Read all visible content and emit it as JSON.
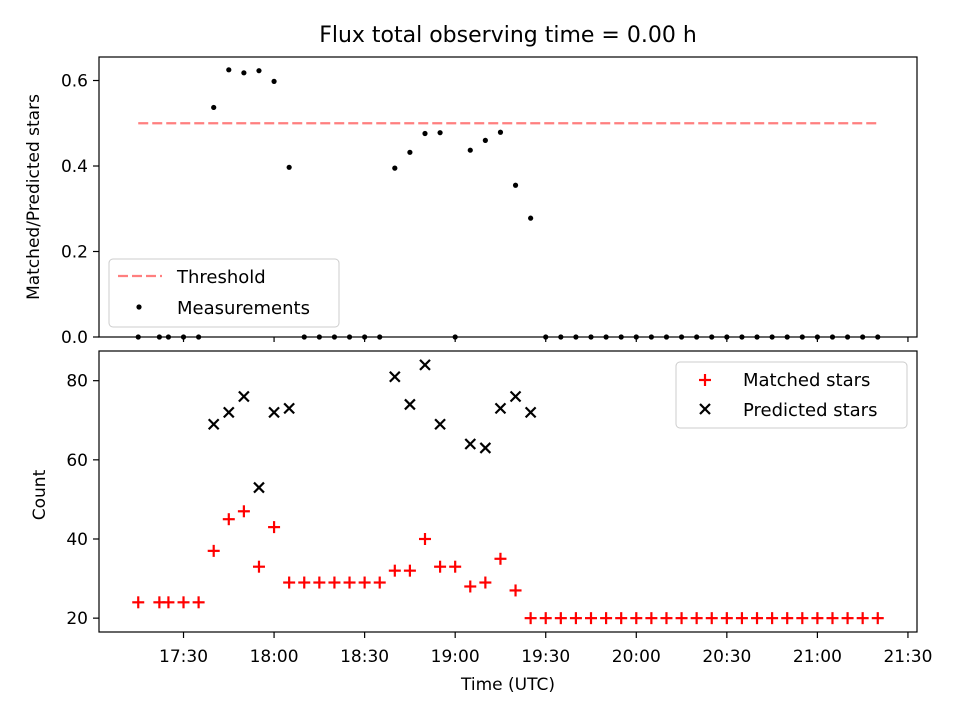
{
  "chart_data": [
    {
      "type": "scatter",
      "title": "Flux total observing time = 0.00 h",
      "xlabel": "",
      "ylabel": "Matched/Predicted stars",
      "ylim": [
        0,
        0.655
      ],
      "yticks": [
        "0.0",
        "0.2",
        "0.4",
        "0.6"
      ],
      "grid": false,
      "legend_position": "lower-left",
      "threshold": {
        "name": "Threshold",
        "value": 0.5,
        "x_start": "17:15",
        "x_end": "21:20",
        "color": "#ff7f7f",
        "style": "dashed"
      },
      "series": [
        {
          "name": "Measurements",
          "color": "#000000",
          "points": [
            [
              "17:15",
              0.0
            ],
            [
              "17:22",
              0.0
            ],
            [
              "17:25",
              0.0
            ],
            [
              "17:30",
              0.0
            ],
            [
              "17:35",
              0.0
            ],
            [
              "17:40",
              0.537
            ],
            [
              "17:45",
              0.625
            ],
            [
              "17:50",
              0.618
            ],
            [
              "17:55",
              0.623
            ],
            [
              "18:00",
              0.598
            ],
            [
              "18:05",
              0.397
            ],
            [
              "18:10",
              0.0
            ],
            [
              "18:15",
              0.0
            ],
            [
              "18:20",
              0.0
            ],
            [
              "18:25",
              0.0
            ],
            [
              "18:30",
              0.0
            ],
            [
              "18:35",
              0.0
            ],
            [
              "18:40",
              0.395
            ],
            [
              "18:45",
              0.432
            ],
            [
              "18:50",
              0.476
            ],
            [
              "18:55",
              0.478
            ],
            [
              "19:00",
              0.0
            ],
            [
              "19:05",
              0.437
            ],
            [
              "19:10",
              0.46
            ],
            [
              "19:15",
              0.479
            ],
            [
              "19:20",
              0.355
            ],
            [
              "19:25",
              0.278
            ],
            [
              "19:30",
              0.0
            ],
            [
              "19:35",
              0.0
            ],
            [
              "19:40",
              0.0
            ],
            [
              "19:45",
              0.0
            ],
            [
              "19:50",
              0.0
            ],
            [
              "19:55",
              0.0
            ],
            [
              "20:00",
              0.0
            ],
            [
              "20:05",
              0.0
            ],
            [
              "20:10",
              0.0
            ],
            [
              "20:15",
              0.0
            ],
            [
              "20:20",
              0.0
            ],
            [
              "20:25",
              0.0
            ],
            [
              "20:30",
              0.0
            ],
            [
              "20:35",
              0.0
            ],
            [
              "20:40",
              0.0
            ],
            [
              "20:45",
              0.0
            ],
            [
              "20:50",
              0.0
            ],
            [
              "20:55",
              0.0
            ],
            [
              "21:00",
              0.0
            ],
            [
              "21:05",
              0.0
            ],
            [
              "21:10",
              0.0
            ],
            [
              "21:15",
              0.0
            ],
            [
              "21:20",
              0.0
            ]
          ]
        }
      ]
    },
    {
      "type": "scatter",
      "title": "",
      "xlabel": "Time (UTC)",
      "ylabel": "Count",
      "ylim": [
        16.5,
        87.5
      ],
      "yticks": [
        "20",
        "40",
        "60",
        "80"
      ],
      "xlim": [
        "17:02",
        "21:33"
      ],
      "xticks": [
        "17:30",
        "18:00",
        "18:30",
        "19:00",
        "19:30",
        "20:00",
        "20:30",
        "21:00",
        "21:30"
      ],
      "grid": false,
      "legend_position": "top-right",
      "series": [
        {
          "name": "Matched stars",
          "marker": "plus",
          "color": "#ff0000",
          "points": [
            [
              "17:15",
              24
            ],
            [
              "17:22",
              24
            ],
            [
              "17:25",
              24
            ],
            [
              "17:30",
              24
            ],
            [
              "17:35",
              24
            ],
            [
              "17:40",
              37
            ],
            [
              "17:45",
              45
            ],
            [
              "17:50",
              47
            ],
            [
              "17:55",
              33
            ],
            [
              "18:00",
              43
            ],
            [
              "18:05",
              29
            ],
            [
              "18:10",
              29
            ],
            [
              "18:15",
              29
            ],
            [
              "18:20",
              29
            ],
            [
              "18:25",
              29
            ],
            [
              "18:30",
              29
            ],
            [
              "18:35",
              29
            ],
            [
              "18:40",
              32
            ],
            [
              "18:45",
              32
            ],
            [
              "18:50",
              40
            ],
            [
              "18:55",
              33
            ],
            [
              "19:00",
              33
            ],
            [
              "19:05",
              28
            ],
            [
              "19:10",
              29
            ],
            [
              "19:15",
              35
            ],
            [
              "19:20",
              27
            ],
            [
              "19:25",
              20
            ],
            [
              "19:30",
              20
            ],
            [
              "19:35",
              20
            ],
            [
              "19:40",
              20
            ],
            [
              "19:45",
              20
            ],
            [
              "19:50",
              20
            ],
            [
              "19:55",
              20
            ],
            [
              "20:00",
              20
            ],
            [
              "20:05",
              20
            ],
            [
              "20:10",
              20
            ],
            [
              "20:15",
              20
            ],
            [
              "20:20",
              20
            ],
            [
              "20:25",
              20
            ],
            [
              "20:30",
              20
            ],
            [
              "20:35",
              20
            ],
            [
              "20:40",
              20
            ],
            [
              "20:45",
              20
            ],
            [
              "20:50",
              20
            ],
            [
              "20:55",
              20
            ],
            [
              "21:00",
              20
            ],
            [
              "21:05",
              20
            ],
            [
              "21:10",
              20
            ],
            [
              "21:15",
              20
            ],
            [
              "21:20",
              20
            ]
          ]
        },
        {
          "name": "Predicted stars",
          "marker": "x",
          "color": "#000000",
          "points": [
            [
              "17:40",
              69
            ],
            [
              "17:45",
              72
            ],
            [
              "17:50",
              76
            ],
            [
              "17:55",
              53
            ],
            [
              "18:00",
              72
            ],
            [
              "18:05",
              73
            ],
            [
              "18:40",
              81
            ],
            [
              "18:45",
              74
            ],
            [
              "18:50",
              84
            ],
            [
              "18:55",
              69
            ],
            [
              "19:05",
              64
            ],
            [
              "19:10",
              63
            ],
            [
              "19:15",
              73
            ],
            [
              "19:20",
              76
            ],
            [
              "19:25",
              72
            ]
          ]
        }
      ]
    }
  ]
}
